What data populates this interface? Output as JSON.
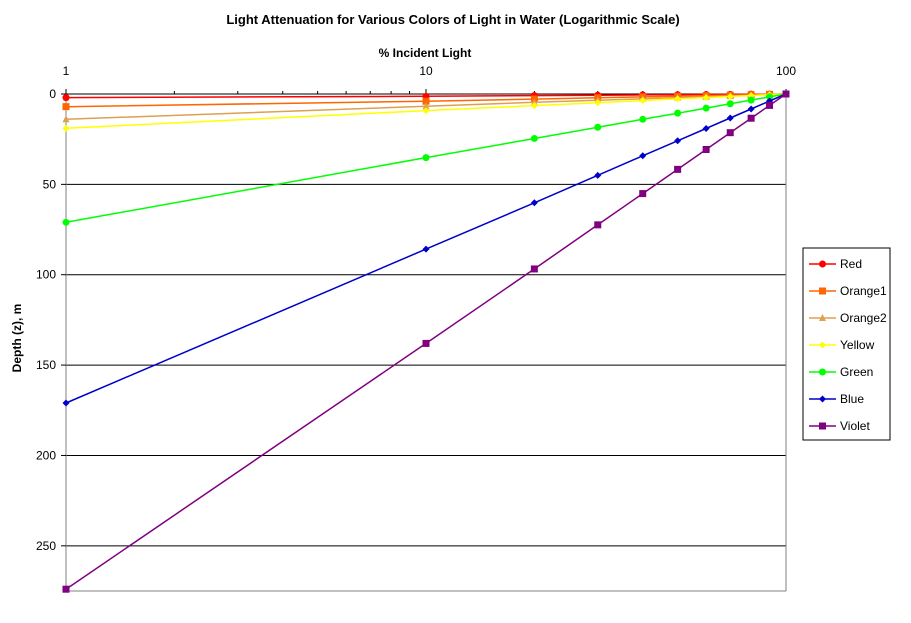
{
  "chart_data": {
    "type": "line",
    "title": "Light Attenuation for Various Colors of Light in Water (Logarithmic Scale)",
    "xlabel": "% Incident Light",
    "ylabel": "Depth (z), m",
    "x_scale": "log",
    "x_range": [
      1,
      100
    ],
    "x_ticks": [
      "1",
      "10",
      "100"
    ],
    "y_range": [
      0,
      275
    ],
    "y_inverted": true,
    "y_ticks": [
      "0",
      "50",
      "100",
      "150",
      "200",
      "250"
    ],
    "grid": "horizontal",
    "legend_position": "right",
    "series": [
      {
        "name": "Red",
        "color": "#FF0000",
        "marker": "circle",
        "x": [
          100,
          90,
          80,
          70,
          60,
          50,
          40,
          30,
          20,
          10,
          1
        ],
        "y": [
          0,
          0.1,
          0.1,
          0.2,
          0.3,
          0.4,
          0.5,
          0.7,
          0.9,
          1.3,
          2
        ]
      },
      {
        "name": "Orange1",
        "color": "#FF6600",
        "marker": "square",
        "x": [
          100,
          90,
          80,
          70,
          60,
          50,
          40,
          30,
          20,
          10,
          1
        ],
        "y": [
          0,
          0.2,
          0.4,
          0.6,
          0.9,
          1.2,
          1.6,
          2.1,
          2.8,
          4,
          7
        ]
      },
      {
        "name": "Orange2",
        "color": "#DDA050",
        "marker": "triangle",
        "x": [
          100,
          90,
          80,
          70,
          60,
          50,
          40,
          30,
          20,
          10,
          1
        ],
        "y": [
          0,
          0.3,
          0.7,
          1.1,
          1.5,
          2,
          2.6,
          3.5,
          4.6,
          6.8,
          14
        ]
      },
      {
        "name": "Yellow",
        "color": "#FFFF00",
        "marker": "diamond",
        "x": [
          100,
          90,
          80,
          70,
          60,
          50,
          40,
          30,
          20,
          10,
          1
        ],
        "y": [
          0,
          0.4,
          0.9,
          1.4,
          2,
          2.7,
          3.6,
          4.8,
          6.4,
          9.2,
          19
        ]
      },
      {
        "name": "Green",
        "color": "#00FF00",
        "marker": "circle",
        "x": [
          100,
          90,
          80,
          70,
          60,
          50,
          40,
          30,
          20,
          10,
          1
        ],
        "y": [
          0,
          1.6,
          3.4,
          5.4,
          7.8,
          10.6,
          14,
          18.4,
          24.6,
          35.2,
          71
        ]
      },
      {
        "name": "Blue",
        "color": "#0000CC",
        "marker": "diamond",
        "x": [
          100,
          90,
          80,
          70,
          60,
          50,
          40,
          30,
          20,
          10,
          1
        ],
        "y": [
          0,
          3.9,
          8.3,
          13.3,
          19.1,
          25.9,
          34.2,
          45,
          60.2,
          85.8,
          171
        ]
      },
      {
        "name": "Violet",
        "color": "#800080",
        "marker": "square",
        "x": [
          100,
          90,
          80,
          70,
          60,
          50,
          40,
          30,
          20,
          10,
          1
        ],
        "y": [
          0,
          6.3,
          13.4,
          21.4,
          30.7,
          41.7,
          55.1,
          72.4,
          96.8,
          138,
          274
        ]
      }
    ]
  }
}
